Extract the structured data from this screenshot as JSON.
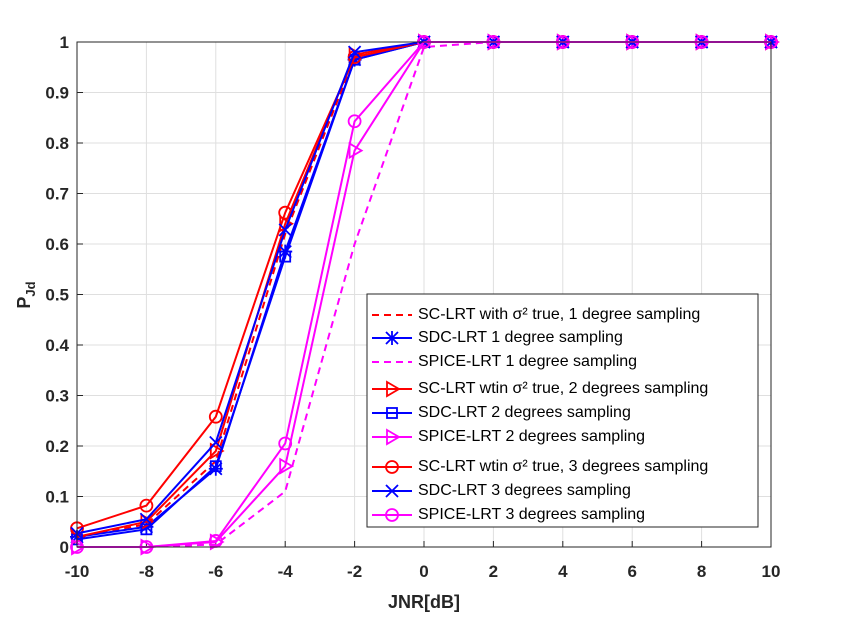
{
  "chart_data": {
    "type": "line",
    "x_label": "JNR[dB]",
    "y_label": "P",
    "y_label_sub": "Jd",
    "x": [
      -10,
      -8,
      -6,
      -4,
      -2,
      0,
      2,
      4,
      6,
      8,
      10
    ],
    "xlim": [
      -10,
      10
    ],
    "xticks": [
      -10,
      -8,
      -6,
      -4,
      -2,
      0,
      2,
      4,
      6,
      8,
      10
    ],
    "ylim": [
      0,
      1
    ],
    "yticks": [
      0,
      0.1,
      0.2,
      0.3,
      0.4,
      0.5,
      0.6,
      0.7,
      0.8,
      0.9,
      1
    ],
    "grid": true,
    "legend": "lower-right",
    "series": [
      {
        "name": "SC-LRT with σ² true, 1 degree sampling",
        "color": "#ff0000",
        "dash": true,
        "marker": "none",
        "values": [
          0.02,
          0.045,
          0.17,
          0.62,
          0.97,
          1,
          1,
          1,
          1,
          1,
          1
        ]
      },
      {
        "name": "SDC-LRT 1 degree sampling",
        "color": "#0000ff",
        "dash": false,
        "marker": "asterisk",
        "values": [
          0.02,
          0.04,
          0.155,
          0.585,
          0.965,
          1,
          1,
          1,
          1,
          1,
          1
        ]
      },
      {
        "name": "SPICE-LRT 1 degree sampling",
        "color": "#ff00ff",
        "dash": true,
        "marker": "none",
        "values": [
          0,
          0,
          0.005,
          0.11,
          0.6,
          0.99,
          1,
          1,
          1,
          1,
          1
        ]
      },
      {
        "name": "SC-LRT wtin σ² true, 2 degrees sampling",
        "color": "#ff0000",
        "dash": false,
        "marker": "triangle-right",
        "values": [
          0.02,
          0.05,
          0.19,
          0.64,
          0.975,
          1,
          1,
          1,
          1,
          1,
          1
        ]
      },
      {
        "name": "SDC-LRT 2 degrees sampling",
        "color": "#0000ff",
        "dash": false,
        "marker": "square",
        "values": [
          0.015,
          0.035,
          0.16,
          0.575,
          0.965,
          1,
          1,
          1,
          1,
          1,
          1
        ]
      },
      {
        "name": "SPICE-LRT 2 degrees sampling",
        "color": "#ff00ff",
        "dash": false,
        "marker": "triangle-right",
        "values": [
          0,
          0,
          0.01,
          0.16,
          0.785,
          1,
          1,
          1,
          1,
          1,
          1
        ]
      },
      {
        "name": "SC-LRT wtin σ² true, 3 degrees sampling",
        "color": "#ff0000",
        "dash": false,
        "marker": "circle",
        "values": [
          0.037,
          0.082,
          0.258,
          0.662,
          0.97,
          1,
          1,
          1,
          1,
          1,
          1
        ]
      },
      {
        "name": "SDC-LRT 3 degrees sampling",
        "color": "#0000ff",
        "dash": false,
        "marker": "x",
        "values": [
          0.027,
          0.055,
          0.207,
          0.628,
          0.98,
          1,
          1,
          1,
          1,
          1,
          1
        ]
      },
      {
        "name": "SPICE-LRT 3 degrees sampling",
        "color": "#ff00ff",
        "dash": false,
        "marker": "circle",
        "values": [
          0,
          0,
          0.012,
          0.205,
          0.843,
          1,
          1,
          1,
          1,
          1,
          1
        ]
      }
    ]
  }
}
